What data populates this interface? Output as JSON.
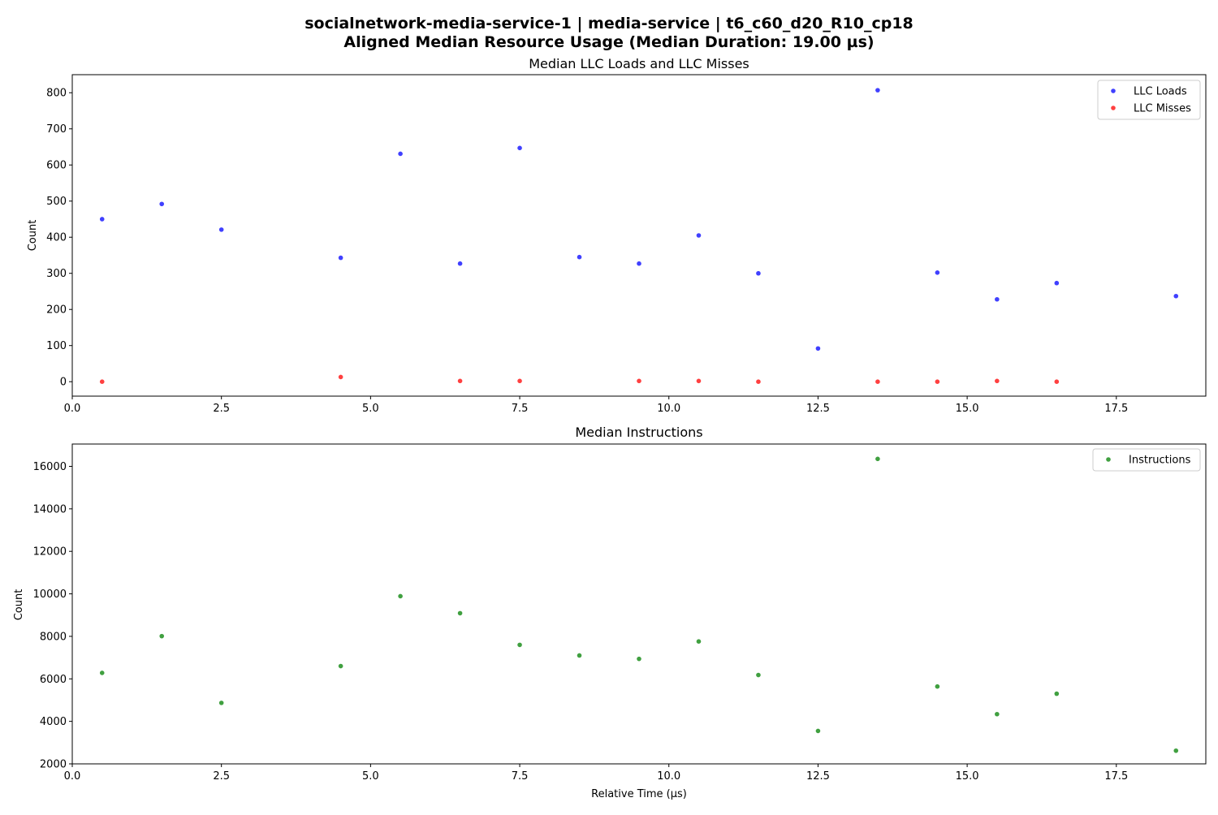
{
  "figure": {
    "title_line1": "socialnetwork-media-service-1 | media-service | t6_c60_d20_R10_cp18",
    "title_line2": "Aligned Median Resource Usage (Median Duration: 19.00 µs)"
  },
  "chart_data": [
    {
      "type": "scatter",
      "title": "Median LLC Loads and LLC Misses",
      "xlabel": "",
      "ylabel": "Count",
      "xlim": [
        0,
        19
      ],
      "ylim": [
        -40,
        850
      ],
      "xticks": [
        0,
        2.5,
        5,
        7.5,
        10,
        12.5,
        15,
        17.5
      ],
      "xtick_labels": [
        "0.0",
        "2.5",
        "5.0",
        "7.5",
        "10.0",
        "12.5",
        "15.0",
        "17.5"
      ],
      "yticks": [
        0,
        100,
        200,
        300,
        400,
        500,
        600,
        700,
        800
      ],
      "ytick_labels": [
        "0",
        "100",
        "200",
        "300",
        "400",
        "500",
        "600",
        "700",
        "800"
      ],
      "grid": false,
      "legend_position": "top-right",
      "series": [
        {
          "name": "LLC Loads",
          "color": "#0000ff",
          "x": [
            0.5,
            1.5,
            2.5,
            4.5,
            5.5,
            6.5,
            7.5,
            8.5,
            9.5,
            10.5,
            11.5,
            12.5,
            13.5,
            14.5,
            15.5,
            16.5,
            18.5
          ],
          "y": [
            450,
            492,
            421,
            343,
            631,
            327,
            647,
            345,
            327,
            405,
            300,
            92,
            807,
            302,
            228,
            273,
            237
          ]
        },
        {
          "name": "LLC Misses",
          "color": "#ff0000",
          "x": [
            0.5,
            4.5,
            6.5,
            7.5,
            9.5,
            10.5,
            11.5,
            13.5,
            14.5,
            15.5,
            16.5
          ],
          "y": [
            0,
            13,
            2,
            2,
            2,
            2,
            0,
            0,
            0,
            2,
            0
          ]
        }
      ]
    },
    {
      "type": "scatter",
      "title": "Median Instructions",
      "xlabel": "Relative Time (µs)",
      "ylabel": "Count",
      "xlim": [
        0,
        19
      ],
      "ylim": [
        2000,
        17050
      ],
      "xticks": [
        0,
        2.5,
        5,
        7.5,
        10,
        12.5,
        15,
        17.5
      ],
      "xtick_labels": [
        "0.0",
        "2.5",
        "5.0",
        "7.5",
        "10.0",
        "12.5",
        "15.0",
        "17.5"
      ],
      "yticks": [
        2000,
        4000,
        6000,
        8000,
        10000,
        12000,
        14000,
        16000
      ],
      "ytick_labels": [
        "2000",
        "4000",
        "6000",
        "8000",
        "10000",
        "12000",
        "14000",
        "16000"
      ],
      "grid": false,
      "legend_position": "top-right",
      "series": [
        {
          "name": "Instructions",
          "color": "#008000",
          "x": [
            0.5,
            1.5,
            2.5,
            4.5,
            5.5,
            6.5,
            7.5,
            8.5,
            9.5,
            10.5,
            11.5,
            12.5,
            13.5,
            14.5,
            15.5,
            16.5,
            18.5
          ],
          "y": [
            6280,
            8010,
            4870,
            6600,
            9890,
            9090,
            7600,
            7100,
            6940,
            7760,
            6180,
            3550,
            16350,
            5640,
            4340,
            5300,
            2620
          ]
        }
      ]
    }
  ]
}
